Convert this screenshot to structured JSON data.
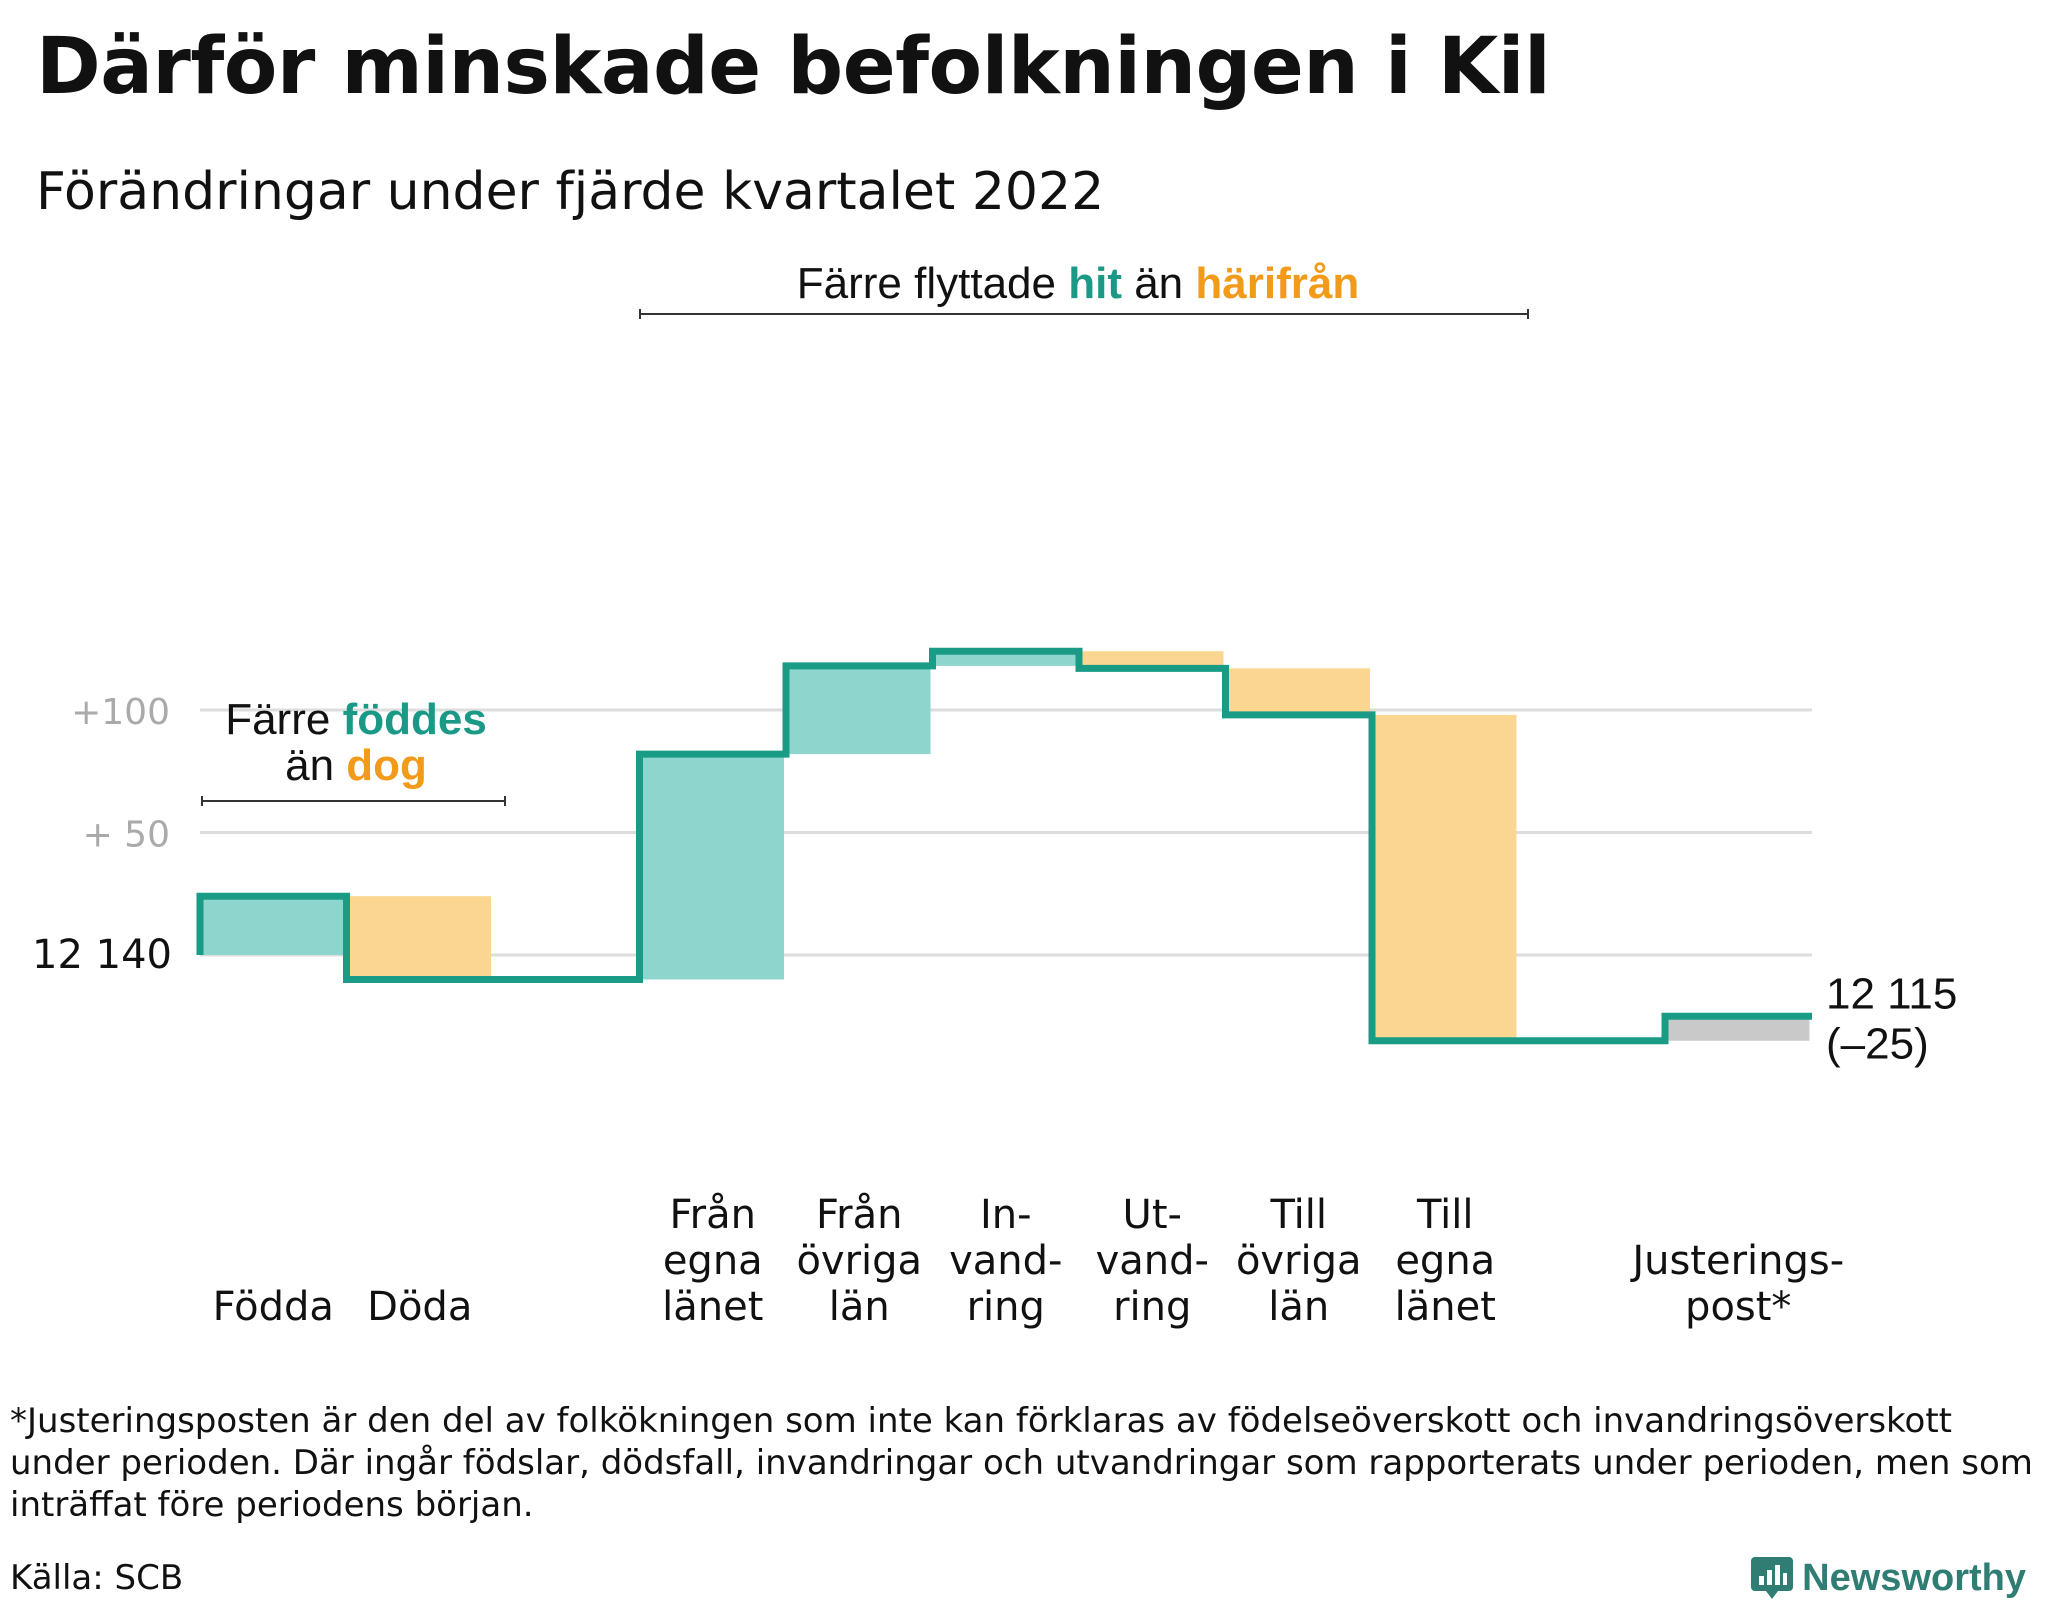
{
  "title": "Därför minskade befolkningen i Kil",
  "subtitle": "Förändringar under fjärde kvartalet 2022",
  "colors": {
    "increase": "#8dd5cd",
    "decrease": "#fad690",
    "adjustment": "#c9c9c9",
    "line": "#199b86",
    "teal_text": "#1a9a86",
    "orange_text": "#f29a1a",
    "grid": "#dddddd",
    "tick_text": "#aaaaaa"
  },
  "annotations": {
    "births": {
      "prefix": "Färre",
      "highlight1": "föddes",
      "middle": "än",
      "highlight2": "dog"
    },
    "migration": {
      "prefix": "Färre flyttade",
      "highlight1": "hit",
      "middle": "än",
      "highlight2": "härifrån"
    }
  },
  "chart_data": {
    "type": "waterfall",
    "start_label": "12 140",
    "start_value": 12140,
    "end_label": "12 115",
    "end_change_label": "(–25)",
    "end_value": 12115,
    "y_ticks": [
      {
        "label": "+100",
        "offset": 100
      },
      {
        "label": "+ 50",
        "offset": 50
      },
      {
        "label": "",
        "offset": 0
      }
    ],
    "ylim_offset": [
      -50,
      125
    ],
    "steps": [
      {
        "label_lines": [
          "Födda"
        ],
        "change": 24
      },
      {
        "label_lines": [
          "Döda"
        ],
        "change": -34
      },
      {
        "label_lines": [
          ""
        ],
        "change": 0
      },
      {
        "label_lines": [
          "Från",
          "egna",
          "länet"
        ],
        "change": 92
      },
      {
        "label_lines": [
          "Från",
          "övriga",
          "län"
        ],
        "change": 36
      },
      {
        "label_lines": [
          "In-",
          "vand-",
          "ring"
        ],
        "change": 6
      },
      {
        "label_lines": [
          "Ut-",
          "vand-",
          "ring"
        ],
        "change": -7
      },
      {
        "label_lines": [
          "Till",
          "övriga",
          "län"
        ],
        "change": -19
      },
      {
        "label_lines": [
          "Till",
          "egna",
          "länet"
        ],
        "change": -133
      },
      {
        "label_lines": [
          ""
        ],
        "change": 0
      },
      {
        "label_lines": [
          "Justerings-",
          "post*"
        ],
        "change": 10
      }
    ]
  },
  "footnote": "*Justeringsposten är den del av folkökningen som inte kan förklaras av födelseöverskott och invandringsöverskott under perioden. Där ingår födslar, dödsfall, invandringar och utvandringar som rapporterats under perioden, men som inträffat före periodens början.",
  "source": "Källa: SCB",
  "brand": "Newsworthy"
}
